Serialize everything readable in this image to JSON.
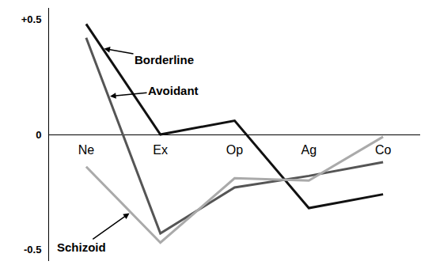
{
  "chart_data": {
    "type": "line",
    "categories": [
      "Ne",
      "Ex",
      "Op",
      "Ag",
      "Co"
    ],
    "series": [
      {
        "name": "Borderline",
        "color": "#111111",
        "values": [
          0.48,
          0.0,
          0.06,
          -0.32,
          -0.26
        ]
      },
      {
        "name": "Avoidant",
        "color": "#555555",
        "values": [
          0.42,
          -0.43,
          -0.23,
          -0.18,
          -0.12
        ]
      },
      {
        "name": "Schizoid",
        "color": "#aaaaaa",
        "values": [
          -0.14,
          -0.47,
          -0.19,
          -0.2,
          -0.01
        ]
      }
    ],
    "ylim": [
      -0.55,
      0.55
    ],
    "yticks": [
      {
        "value": 0.5,
        "label": "+0.5"
      },
      0,
      -0.5
    ],
    "grid": false
  }
}
